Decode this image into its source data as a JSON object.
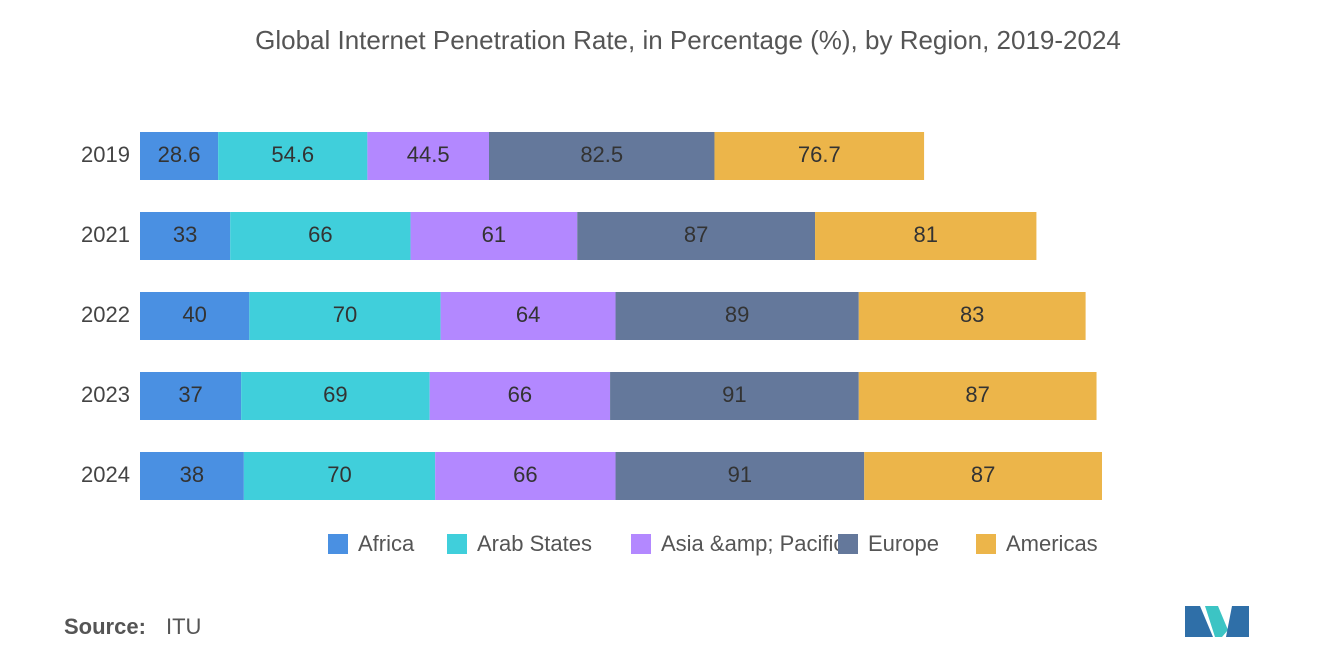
{
  "chart_data": {
    "type": "stacked-bar-horizontal",
    "title": "Global Internet Penetration Rate, in Percentage (%), by Region, 2019-2024",
    "categories": [
      "2019",
      "2021",
      "2022",
      "2023",
      "2024"
    ],
    "series": [
      {
        "name": "Africa",
        "color": "#4a90e2",
        "values": [
          28.6,
          33,
          40,
          37,
          38
        ]
      },
      {
        "name": "Arab States",
        "color": "#40cfdb",
        "values": [
          54.6,
          66,
          70,
          69,
          70
        ]
      },
      {
        "name": "Asia &amp; Pacific",
        "color": "#b388ff",
        "values": [
          44.5,
          61,
          64,
          66,
          66
        ]
      },
      {
        "name": "Europe",
        "color": "#64789b",
        "values": [
          82.5,
          87,
          89,
          91,
          91
        ]
      },
      {
        "name": "Americas",
        "color": "#ecb54a",
        "values": [
          76.7,
          81,
          83,
          87,
          87
        ]
      }
    ],
    "source_label": "Source:",
    "source": "ITU"
  }
}
